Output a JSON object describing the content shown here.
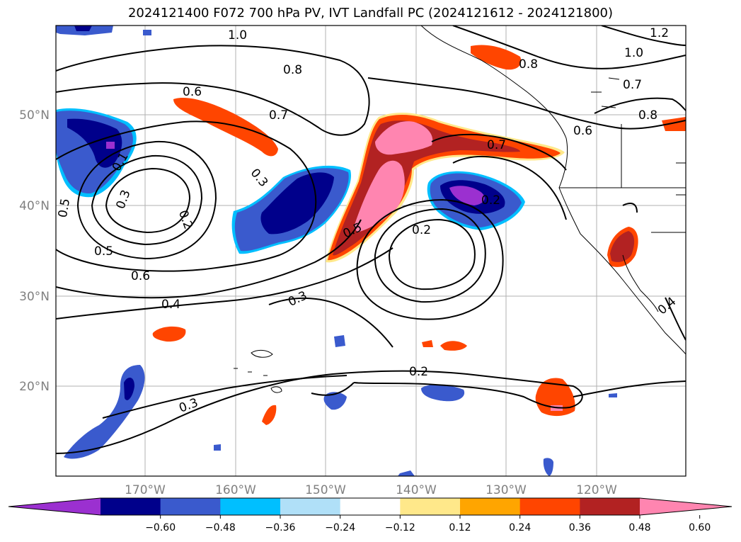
{
  "title": "2024121400 F072 700 hPa PV, IVT Landfall PC (2024121612 - 2024121800)",
  "lon_ticks": [
    "170°W",
    "160°W",
    "150°W",
    "140°W",
    "130°W",
    "120°W"
  ],
  "lat_ticks": [
    "20°N",
    "30°N",
    "40°N",
    "50°N"
  ],
  "colorbar": {
    "colors": [
      "#9b30d0",
      "#00008b",
      "#3a5acd",
      "#00bfff",
      "#b0e0f8",
      "#ffffff",
      "#ffe88a",
      "#ffa500",
      "#ff4500",
      "#b22222",
      "#ff85b0"
    ],
    "labels": [
      "−0.60",
      "−0.48",
      "−0.36",
      "−0.24",
      "−0.12",
      "0.12",
      "0.24",
      "0.36",
      "0.48",
      "0.60"
    ]
  },
  "contour_labels": [
    "1.0",
    "1.2",
    "1.0",
    "0.8",
    "0.8",
    "0.7",
    "0.6",
    "0.8",
    "0.7",
    "0.7",
    "0.6",
    "0.5",
    "0.3",
    "0.3",
    "0.2",
    "0.1",
    "0.5",
    "0.5",
    "0.6",
    "0.4",
    "0.3",
    "0.2",
    "0.2",
    "0.3",
    "0.4",
    "0.2"
  ]
}
